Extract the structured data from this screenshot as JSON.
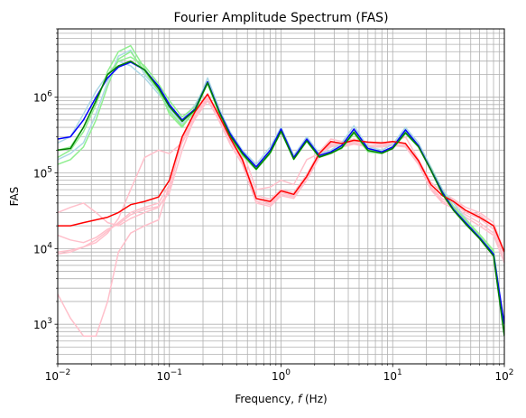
{
  "chart_data": {
    "type": "line",
    "title": "Fourier Amplitude Spectrum (FAS)",
    "xlabel_prefix": "Frequency, ",
    "xlabel_var": "f",
    "xlabel_suffix": " (Hz)",
    "ylabel": "FAS",
    "xscale": "log",
    "yscale": "log",
    "xlim": [
      0.01,
      100
    ],
    "ylim": [
      300,
      8000000
    ],
    "grid": "major-and-minor",
    "legend": "none",
    "x_ticks": [
      {
        "base": "10",
        "exp": "−2",
        "value": 0.01
      },
      {
        "base": "10",
        "exp": "−1",
        "value": 0.1
      },
      {
        "base": "10",
        "exp": "0",
        "value": 1
      },
      {
        "base": "10",
        "exp": "1",
        "value": 10
      },
      {
        "base": "10",
        "exp": "2",
        "value": 100
      }
    ],
    "y_ticks": [
      {
        "base": "10",
        "exp": "3",
        "value": 1000
      },
      {
        "base": "10",
        "exp": "4",
        "value": 10000
      },
      {
        "base": "10",
        "exp": "5",
        "value": 100000
      },
      {
        "base": "10",
        "exp": "6",
        "value": 1000000
      }
    ],
    "series": [
      {
        "color": "#ffc0cb",
        "width": 1.5,
        "x": [
          0.01,
          0.013,
          0.017,
          0.022,
          0.028,
          0.035,
          0.045,
          0.06,
          0.08,
          0.1,
          0.13,
          0.17,
          0.22,
          0.28,
          0.35,
          0.45,
          0.6,
          0.8,
          1,
          1.3,
          1.7,
          2.2,
          2.8,
          3.5,
          4.5,
          6,
          8,
          10,
          13,
          17,
          22,
          28,
          35,
          45,
          60,
          80,
          100
        ],
        "y": [
          9000,
          9500,
          10500,
          12000,
          16000,
          25000,
          60000,
          160000,
          200000,
          180000,
          250000,
          520000,
          900000,
          500000,
          260000,
          200000,
          60000,
          65000,
          80000,
          70000,
          150000,
          180000,
          220000,
          240000,
          260000,
          250000,
          240000,
          250000,
          300000,
          150000,
          70000,
          50000,
          45000,
          35000,
          30000,
          22000,
          9000
        ]
      },
      {
        "color": "#ffc0cb",
        "width": 1.5,
        "x": [
          0.01,
          0.013,
          0.017,
          0.022,
          0.028,
          0.035,
          0.045,
          0.06,
          0.08,
          0.1,
          0.13,
          0.17,
          0.22,
          0.28,
          0.35,
          0.45,
          0.6,
          0.8,
          1,
          1.3,
          1.7,
          2.2,
          2.8,
          3.5,
          4.5,
          6,
          8,
          10,
          13,
          17,
          22,
          28,
          35,
          45,
          60,
          80,
          100
        ],
        "y": [
          8500,
          9000,
          10500,
          13000,
          17000,
          22000,
          30000,
          35000,
          40000,
          70000,
          250000,
          600000,
          1000000,
          550000,
          280000,
          150000,
          45000,
          40000,
          55000,
          50000,
          90000,
          170000,
          250000,
          240000,
          250000,
          230000,
          230000,
          240000,
          230000,
          140000,
          65000,
          45000,
          40000,
          30000,
          25000,
          18000,
          8000
        ]
      },
      {
        "color": "#ffc0cb",
        "width": 1.5,
        "x": [
          0.01,
          0.013,
          0.017,
          0.022,
          0.028,
          0.035,
          0.045,
          0.06,
          0.08,
          0.1,
          0.13,
          0.17,
          0.22,
          0.28,
          0.35,
          0.45,
          0.6,
          0.8,
          1,
          1.3,
          1.7,
          2.2,
          2.8,
          3.5,
          4.5,
          6,
          8,
          10,
          13,
          17,
          22,
          28,
          35,
          45,
          60,
          80,
          100
        ],
        "y": [
          30000,
          35000,
          40000,
          30000,
          22000,
          20000,
          25000,
          30000,
          35000,
          60000,
          280000,
          650000,
          1100000,
          560000,
          290000,
          160000,
          50000,
          45000,
          60000,
          55000,
          95000,
          190000,
          280000,
          260000,
          280000,
          250000,
          250000,
          260000,
          240000,
          150000,
          75000,
          55000,
          45000,
          32000,
          28000,
          20000,
          9000
        ]
      },
      {
        "color": "#ffc0cb",
        "width": 1.5,
        "x": [
          0.01,
          0.013,
          0.017,
          0.022,
          0.028,
          0.035,
          0.045,
          0.06,
          0.08,
          0.1,
          0.13,
          0.17,
          0.22,
          0.28,
          0.35,
          0.45,
          0.6,
          0.8,
          1,
          1.3,
          1.7,
          2.2,
          2.8,
          3.5,
          4.5,
          6,
          8,
          10,
          13,
          17,
          22,
          28,
          35,
          45,
          60,
          80,
          100
        ],
        "y": [
          2500,
          1200,
          700,
          700,
          2000,
          9000,
          16000,
          20000,
          24000,
          70000,
          260000,
          620000,
          1050000,
          520000,
          270000,
          140000,
          42000,
          38000,
          52000,
          48000,
          85000,
          165000,
          240000,
          230000,
          245000,
          225000,
          225000,
          235000,
          225000,
          135000,
          62000,
          42000,
          36000,
          28000,
          22000,
          16000,
          7000
        ]
      },
      {
        "color": "#ffc0cb",
        "width": 1.5,
        "x": [
          0.01,
          0.013,
          0.017,
          0.022,
          0.028,
          0.035,
          0.045,
          0.06,
          0.08,
          0.1,
          0.13,
          0.17,
          0.22,
          0.28,
          0.35,
          0.45,
          0.6,
          0.8,
          1,
          1.3,
          1.7,
          2.2,
          2.8,
          3.5,
          4.5,
          6,
          8,
          10,
          13,
          17,
          22,
          28,
          35,
          45,
          60,
          80,
          100
        ],
        "y": [
          15000,
          13000,
          12000,
          14000,
          18000,
          21000,
          28000,
          33000,
          36000,
          55000,
          200000,
          560000,
          950000,
          480000,
          240000,
          130000,
          40000,
          36000,
          50000,
          46000,
          80000,
          160000,
          230000,
          220000,
          240000,
          220000,
          220000,
          230000,
          220000,
          130000,
          60000,
          40000,
          34000,
          26000,
          20000,
          15000,
          6500
        ]
      },
      {
        "color": "#add8e6",
        "width": 1.5,
        "x": [
          0.01,
          0.013,
          0.017,
          0.022,
          0.028,
          0.035,
          0.045,
          0.06,
          0.08,
          0.1,
          0.13,
          0.17,
          0.22,
          0.28,
          0.35,
          0.45,
          0.6,
          0.8,
          1,
          1.3,
          1.7,
          2.2,
          2.8,
          3.5,
          4.5,
          6,
          8,
          10,
          13,
          17,
          22,
          28,
          35,
          45,
          60,
          80,
          100
        ],
        "y": [
          150000,
          180000,
          250000,
          600000,
          1600000,
          3500000,
          4200000,
          2000000,
          1200000,
          700000,
          450000,
          700000,
          1800000,
          700000,
          350000,
          200000,
          130000,
          220000,
          400000,
          170000,
          300000,
          180000,
          200000,
          250000,
          420000,
          220000,
          200000,
          240000,
          400000,
          250000,
          120000,
          60000,
          40000,
          25000,
          15000,
          9000,
          800
        ]
      },
      {
        "color": "#add8e6",
        "width": 1.5,
        "x": [
          0.01,
          0.013,
          0.017,
          0.022,
          0.028,
          0.035,
          0.045,
          0.06,
          0.08,
          0.1,
          0.13,
          0.17,
          0.22,
          0.28,
          0.35,
          0.45,
          0.6,
          0.8,
          1,
          1.3,
          1.7,
          2.2,
          2.8,
          3.5,
          4.5,
          6,
          8,
          10,
          13,
          17,
          22,
          28,
          35,
          45,
          60,
          80,
          100
        ],
        "y": [
          250000,
          300000,
          600000,
          1200000,
          2000000,
          3000000,
          2600000,
          1800000,
          1100000,
          800000,
          500000,
          800000,
          1600000,
          650000,
          330000,
          190000,
          120000,
          200000,
          380000,
          160000,
          280000,
          170000,
          190000,
          230000,
          380000,
          210000,
          190000,
          220000,
          380000,
          230000,
          110000,
          55000,
          35000,
          22000,
          14000,
          8000,
          700
        ]
      },
      {
        "color": "#90ee90",
        "width": 1.5,
        "x": [
          0.01,
          0.013,
          0.017,
          0.022,
          0.028,
          0.035,
          0.045,
          0.06,
          0.08,
          0.1,
          0.13,
          0.17,
          0.22,
          0.28,
          0.35,
          0.45,
          0.6,
          0.8,
          1,
          1.3,
          1.7,
          2.2,
          2.8,
          3.5,
          4.5,
          6,
          8,
          10,
          13,
          17,
          22,
          28,
          35,
          45,
          60,
          80,
          100
        ],
        "y": [
          160000,
          200000,
          350000,
          800000,
          2200000,
          4000000,
          4800000,
          2400000,
          1300000,
          600000,
          400000,
          700000,
          1500000,
          600000,
          300000,
          170000,
          110000,
          180000,
          350000,
          150000,
          260000,
          160000,
          180000,
          210000,
          330000,
          190000,
          180000,
          210000,
          330000,
          220000,
          110000,
          55000,
          35000,
          23000,
          15000,
          9000,
          800
        ]
      },
      {
        "color": "#90ee90",
        "width": 1.5,
        "x": [
          0.01,
          0.013,
          0.017,
          0.022,
          0.028,
          0.035,
          0.045,
          0.06,
          0.08,
          0.1,
          0.13,
          0.17,
          0.22,
          0.28,
          0.35,
          0.45,
          0.6,
          0.8,
          1,
          1.3,
          1.7,
          2.2,
          2.8,
          3.5,
          4.5,
          6,
          8,
          10,
          13,
          17,
          22,
          28,
          35,
          45,
          60,
          80,
          100
        ],
        "y": [
          130000,
          150000,
          220000,
          500000,
          1400000,
          3200000,
          4000000,
          2200000,
          1200000,
          650000,
          420000,
          650000,
          1550000,
          620000,
          310000,
          180000,
          115000,
          190000,
          360000,
          155000,
          270000,
          165000,
          185000,
          220000,
          350000,
          200000,
          185000,
          215000,
          350000,
          225000,
          115000,
          57000,
          36000,
          24000,
          15500,
          9500,
          900
        ]
      },
      {
        "color": "#90ee90",
        "width": 1.5,
        "x": [
          0.01,
          0.013,
          0.017,
          0.022,
          0.028,
          0.035,
          0.045,
          0.06,
          0.08,
          0.1,
          0.13,
          0.17,
          0.22,
          0.28,
          0.35,
          0.45,
          0.6,
          0.8,
          1,
          1.3,
          1.7,
          2.2,
          2.8,
          3.5,
          4.5,
          6,
          8,
          10,
          13,
          17,
          22,
          28,
          35,
          45,
          60,
          80,
          100
        ],
        "y": [
          200000,
          220000,
          400000,
          900000,
          2000000,
          3000000,
          3400000,
          2600000,
          1500000,
          900000,
          550000,
          750000,
          1600000,
          640000,
          320000,
          185000,
          118000,
          195000,
          370000,
          158000,
          275000,
          168000,
          188000,
          225000,
          360000,
          205000,
          188000,
          218000,
          360000,
          228000,
          112000,
          56000,
          36000,
          23500,
          15000,
          9200,
          850
        ]
      },
      {
        "color": "#0000ff",
        "width": 1.5,
        "x": [
          0.01,
          0.013,
          0.017,
          0.022,
          0.028,
          0.035,
          0.045,
          0.06,
          0.08,
          0.1,
          0.13,
          0.17,
          0.22,
          0.28,
          0.35,
          0.45,
          0.6,
          0.8,
          1,
          1.3,
          1.7,
          2.2,
          2.8,
          3.5,
          4.5,
          6,
          8,
          10,
          13,
          17,
          22,
          28,
          35,
          45,
          60,
          80,
          100
        ],
        "y": [
          280000,
          300000,
          500000,
          1000000,
          1800000,
          2500000,
          2900000,
          2300000,
          1400000,
          800000,
          500000,
          700000,
          1600000,
          650000,
          330000,
          190000,
          120000,
          200000,
          380000,
          160000,
          280000,
          170000,
          190000,
          230000,
          380000,
          210000,
          190000,
          220000,
          370000,
          230000,
          110000,
          55000,
          33000,
          22000,
          14000,
          8500,
          1000
        ]
      },
      {
        "color": "#ff0000",
        "width": 1.5,
        "x": [
          0.01,
          0.013,
          0.017,
          0.022,
          0.028,
          0.035,
          0.045,
          0.06,
          0.08,
          0.1,
          0.13,
          0.17,
          0.22,
          0.28,
          0.35,
          0.45,
          0.6,
          0.8,
          1,
          1.3,
          1.7,
          2.2,
          2.8,
          3.5,
          4.5,
          6,
          8,
          10,
          13,
          17,
          22,
          28,
          35,
          45,
          60,
          80,
          100
        ],
        "y": [
          20000,
          20000,
          22000,
          24000,
          26000,
          30000,
          38000,
          42000,
          48000,
          80000,
          300000,
          650000,
          1100000,
          560000,
          290000,
          150000,
          46000,
          42000,
          58000,
          52000,
          90000,
          180000,
          260000,
          245000,
          270000,
          255000,
          250000,
          260000,
          245000,
          145000,
          70000,
          50000,
          42000,
          32000,
          26000,
          20000,
          9000
        ]
      },
      {
        "color": "#008000",
        "width": 1.5,
        "x": [
          0.01,
          0.013,
          0.017,
          0.022,
          0.028,
          0.035,
          0.045,
          0.06,
          0.08,
          0.1,
          0.13,
          0.17,
          0.22,
          0.28,
          0.35,
          0.45,
          0.6,
          0.8,
          1,
          1.3,
          1.7,
          2.2,
          2.8,
          3.5,
          4.5,
          6,
          8,
          10,
          13,
          17,
          22,
          28,
          35,
          45,
          60,
          80,
          100
        ],
        "y": [
          200000,
          210000,
          400000,
          900000,
          2000000,
          2600000,
          3000000,
          2300000,
          1300000,
          750000,
          480000,
          680000,
          1550000,
          630000,
          310000,
          180000,
          112000,
          185000,
          355000,
          152000,
          265000,
          162000,
          182000,
          215000,
          345000,
          198000,
          182000,
          210000,
          340000,
          222000,
          108000,
          52000,
          32000,
          21000,
          13500,
          8000,
          700
        ]
      }
    ]
  }
}
